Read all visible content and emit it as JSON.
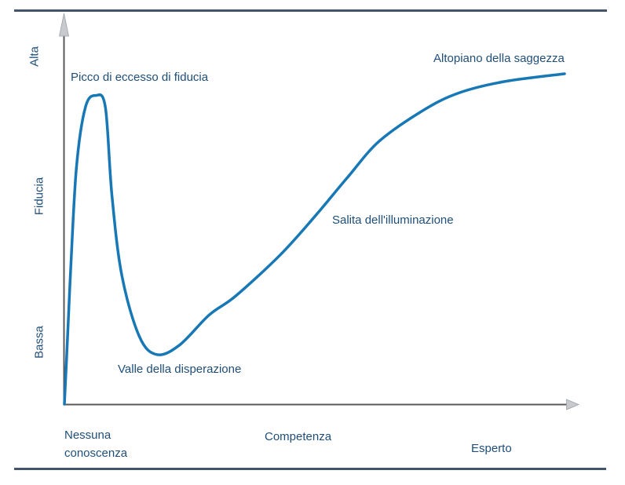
{
  "colors": {
    "background": "#ffffff",
    "rule": "#44546a",
    "axis": "#595959",
    "arrowhead": "#c7c9cc",
    "curve": "#1778b5",
    "label_text": "#1f4e79"
  },
  "chart_data": {
    "type": "line",
    "title": "",
    "xlabel": "",
    "ylabel": "Fiducia",
    "y_tick_labels": [
      "Alta",
      "Bassa"
    ],
    "x_tick_labels": [
      "Nessuna conoscenza",
      "Competenza",
      "Esperto"
    ],
    "x_range": [
      0,
      1
    ],
    "y_range": [
      0,
      1
    ],
    "grid": false,
    "legend": false,
    "annotations": [
      {
        "text": "Picco di eccesso di fiducia",
        "anchor": "peak"
      },
      {
        "text": "Valle della disperazione",
        "anchor": "valley"
      },
      {
        "text": "Salita dell'illuminazione",
        "anchor": "slope"
      },
      {
        "text": "Altopiano della saggezza",
        "anchor": "plateau"
      }
    ],
    "series": [
      {
        "name": "confidence-curve",
        "points": [
          [
            0.0,
            0.0
          ],
          [
            0.004,
            0.12
          ],
          [
            0.012,
            0.38
          ],
          [
            0.024,
            0.7
          ],
          [
            0.042,
            0.88
          ],
          [
            0.063,
            0.915
          ],
          [
            0.082,
            0.88
          ],
          [
            0.095,
            0.62
          ],
          [
            0.115,
            0.38
          ],
          [
            0.15,
            0.2
          ],
          [
            0.185,
            0.147
          ],
          [
            0.23,
            0.175
          ],
          [
            0.29,
            0.265
          ],
          [
            0.342,
            0.32
          ],
          [
            0.43,
            0.44
          ],
          [
            0.5,
            0.555
          ],
          [
            0.565,
            0.67
          ],
          [
            0.63,
            0.78
          ],
          [
            0.72,
            0.873
          ],
          [
            0.79,
            0.923
          ],
          [
            0.88,
            0.956
          ],
          [
            1.0,
            0.979
          ]
        ]
      }
    ]
  },
  "labels": {
    "y_axis_title": "Fiducia",
    "y_high": "Alta",
    "y_low": "Bassa",
    "x_start": "Nessuna conoscenza",
    "x_mid": "Competenza",
    "x_end": "Esperto",
    "peak": "Picco di eccesso di fiducia",
    "valley": "Valle della disperazione",
    "slope": "Salita dell'illuminazione",
    "plateau": "Altopiano della saggezza"
  }
}
